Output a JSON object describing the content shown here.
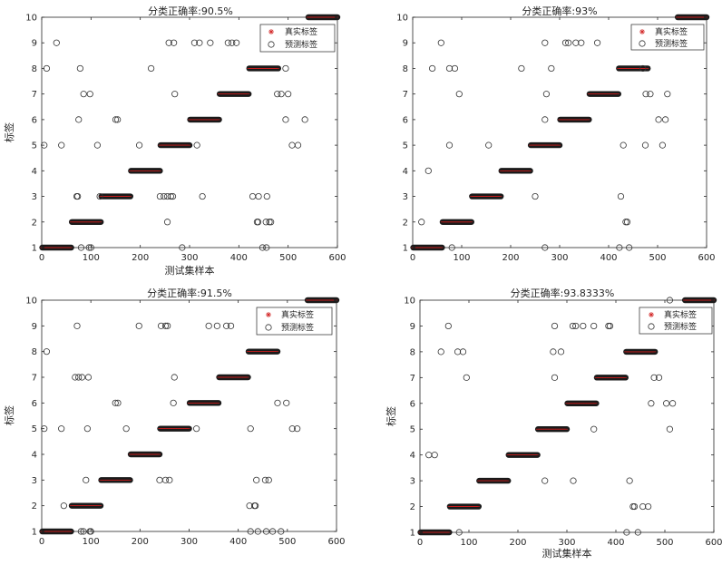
{
  "colors": {
    "true_marker": "#d11f1f",
    "pred_marker": "#333333",
    "axis": "#262626"
  },
  "chart_data": [
    {
      "type": "scatter",
      "title": "分类正确率:90.5%",
      "xlabel": "测试集样本",
      "ylabel": "标签",
      "xlim": [
        0,
        600
      ],
      "ylim": [
        1,
        10
      ],
      "xticks": [
        0,
        100,
        200,
        300,
        400,
        500,
        600
      ],
      "yticks": [
        1,
        2,
        3,
        4,
        5,
        6,
        7,
        8,
        9,
        10
      ],
      "legend": {
        "position": "top-right",
        "entries": [
          "真实标签",
          "预测标签"
        ]
      },
      "true_segments": [
        {
          "label": 1,
          "x_start": 1,
          "x_end": 60
        },
        {
          "label": 2,
          "x_start": 61,
          "x_end": 120
        },
        {
          "label": 3,
          "x_start": 121,
          "x_end": 180
        },
        {
          "label": 4,
          "x_start": 181,
          "x_end": 240
        },
        {
          "label": 5,
          "x_start": 241,
          "x_end": 300
        },
        {
          "label": 6,
          "x_start": 301,
          "x_end": 360
        },
        {
          "label": 7,
          "x_start": 361,
          "x_end": 420
        },
        {
          "label": 8,
          "x_start": 421,
          "x_end": 480
        },
        {
          "label": 9,
          "x_start": 481,
          "x_end": 540
        },
        {
          "label": 10,
          "x_start": 541,
          "x_end": 600
        }
      ],
      "misclassified": [
        {
          "x": 30,
          "y": 9
        },
        {
          "x": 10,
          "y": 8
        },
        {
          "x": 78,
          "y": 8
        },
        {
          "x": 85,
          "y": 7
        },
        {
          "x": 98,
          "y": 7
        },
        {
          "x": 75,
          "y": 6
        },
        {
          "x": 5,
          "y": 5
        },
        {
          "x": 40,
          "y": 5
        },
        {
          "x": 113,
          "y": 5
        },
        {
          "x": 71,
          "y": 3
        },
        {
          "x": 73,
          "y": 3
        },
        {
          "x": 80,
          "y": 1
        },
        {
          "x": 96,
          "y": 1
        },
        {
          "x": 100,
          "y": 1
        },
        {
          "x": 150,
          "y": 6
        },
        {
          "x": 154,
          "y": 6
        },
        {
          "x": 222,
          "y": 8
        },
        {
          "x": 198,
          "y": 5
        },
        {
          "x": 118,
          "y": 3
        },
        {
          "x": 258,
          "y": 9
        },
        {
          "x": 268,
          "y": 9
        },
        {
          "x": 270,
          "y": 7
        },
        {
          "x": 240,
          "y": 3
        },
        {
          "x": 248,
          "y": 3
        },
        {
          "x": 255,
          "y": 3
        },
        {
          "x": 262,
          "y": 3
        },
        {
          "x": 266,
          "y": 3
        },
        {
          "x": 255,
          "y": 2
        },
        {
          "x": 285,
          "y": 1
        },
        {
          "x": 310,
          "y": 9
        },
        {
          "x": 320,
          "y": 9
        },
        {
          "x": 342,
          "y": 9
        },
        {
          "x": 315,
          "y": 5
        },
        {
          "x": 326,
          "y": 3
        },
        {
          "x": 378,
          "y": 9
        },
        {
          "x": 386,
          "y": 9
        },
        {
          "x": 395,
          "y": 9
        },
        {
          "x": 428,
          "y": 3
        },
        {
          "x": 440,
          "y": 3
        },
        {
          "x": 457,
          "y": 3
        },
        {
          "x": 437,
          "y": 2
        },
        {
          "x": 439,
          "y": 2
        },
        {
          "x": 455,
          "y": 2
        },
        {
          "x": 462,
          "y": 2
        },
        {
          "x": 465,
          "y": 2
        },
        {
          "x": 448,
          "y": 1
        },
        {
          "x": 456,
          "y": 1
        },
        {
          "x": 495,
          "y": 8
        },
        {
          "x": 478,
          "y": 7
        },
        {
          "x": 486,
          "y": 7
        },
        {
          "x": 500,
          "y": 7
        },
        {
          "x": 495,
          "y": 6
        },
        {
          "x": 534,
          "y": 6
        },
        {
          "x": 508,
          "y": 5
        },
        {
          "x": 520,
          "y": 5
        }
      ]
    },
    {
      "type": "scatter",
      "title": "分类正确率:93%",
      "xlabel": "",
      "ylabel": "",
      "xlim": [
        0,
        600
      ],
      "ylim": [
        1,
        10
      ],
      "xticks": [
        0,
        100,
        200,
        300,
        400,
        500,
        600
      ],
      "yticks": [
        1,
        2,
        3,
        4,
        5,
        6,
        7,
        8,
        9,
        10
      ],
      "legend": {
        "position": "top-right",
        "entries": [
          "真实标签",
          "预测标签"
        ]
      },
      "true_segments": [
        {
          "label": 1,
          "x_start": 1,
          "x_end": 60
        },
        {
          "label": 2,
          "x_start": 61,
          "x_end": 120
        },
        {
          "label": 3,
          "x_start": 121,
          "x_end": 180
        },
        {
          "label": 4,
          "x_start": 181,
          "x_end": 240
        },
        {
          "label": 5,
          "x_start": 241,
          "x_end": 300
        },
        {
          "label": 6,
          "x_start": 301,
          "x_end": 360
        },
        {
          "label": 7,
          "x_start": 361,
          "x_end": 420
        },
        {
          "label": 8,
          "x_start": 421,
          "x_end": 480
        },
        {
          "label": 9,
          "x_start": 481,
          "x_end": 540
        },
        {
          "label": 10,
          "x_start": 541,
          "x_end": 600
        }
      ],
      "misclassified": [
        {
          "x": 58,
          "y": 9
        },
        {
          "x": 40,
          "y": 8
        },
        {
          "x": 75,
          "y": 8
        },
        {
          "x": 86,
          "y": 8
        },
        {
          "x": 95,
          "y": 7
        },
        {
          "x": 75,
          "y": 5
        },
        {
          "x": 32,
          "y": 4
        },
        {
          "x": 18,
          "y": 2
        },
        {
          "x": 80,
          "y": 1
        },
        {
          "x": 222,
          "y": 8
        },
        {
          "x": 155,
          "y": 5
        },
        {
          "x": 250,
          "y": 3
        },
        {
          "x": 270,
          "y": 9
        },
        {
          "x": 312,
          "y": 9
        },
        {
          "x": 318,
          "y": 9
        },
        {
          "x": 333,
          "y": 9
        },
        {
          "x": 344,
          "y": 9
        },
        {
          "x": 377,
          "y": 9
        },
        {
          "x": 283,
          "y": 8
        },
        {
          "x": 273,
          "y": 7
        },
        {
          "x": 270,
          "y": 6
        },
        {
          "x": 270,
          "y": 1
        },
        {
          "x": 425,
          "y": 3
        },
        {
          "x": 435,
          "y": 2
        },
        {
          "x": 438,
          "y": 2
        },
        {
          "x": 430,
          "y": 5
        },
        {
          "x": 475,
          "y": 5
        },
        {
          "x": 422,
          "y": 1
        },
        {
          "x": 442,
          "y": 1
        },
        {
          "x": 476,
          "y": 7
        },
        {
          "x": 485,
          "y": 7
        },
        {
          "x": 520,
          "y": 7
        },
        {
          "x": 470,
          "y": 8
        },
        {
          "x": 502,
          "y": 6
        },
        {
          "x": 516,
          "y": 6
        },
        {
          "x": 510,
          "y": 5
        }
      ]
    },
    {
      "type": "scatter",
      "title": "分类正确率:91.5%",
      "xlabel": "",
      "ylabel": "标签",
      "xlim": [
        0,
        600
      ],
      "ylim": [
        1,
        10
      ],
      "xticks": [
        0,
        100,
        200,
        300,
        400,
        500,
        600
      ],
      "yticks": [
        1,
        2,
        3,
        4,
        5,
        6,
        7,
        8,
        9,
        10
      ],
      "legend": {
        "position": "top-right",
        "entries": [
          "真实标签",
          "预测标签"
        ]
      },
      "true_segments": [
        {
          "label": 1,
          "x_start": 1,
          "x_end": 60
        },
        {
          "label": 2,
          "x_start": 61,
          "x_end": 120
        },
        {
          "label": 3,
          "x_start": 121,
          "x_end": 180
        },
        {
          "label": 4,
          "x_start": 181,
          "x_end": 240
        },
        {
          "label": 5,
          "x_start": 241,
          "x_end": 300
        },
        {
          "label": 6,
          "x_start": 301,
          "x_end": 360
        },
        {
          "label": 7,
          "x_start": 361,
          "x_end": 420
        },
        {
          "label": 8,
          "x_start": 421,
          "x_end": 480
        },
        {
          "label": 9,
          "x_start": 481,
          "x_end": 540
        },
        {
          "label": 10,
          "x_start": 541,
          "x_end": 600
        }
      ],
      "misclassified": [
        {
          "x": 10,
          "y": 8
        },
        {
          "x": 72,
          "y": 9
        },
        {
          "x": 68,
          "y": 7
        },
        {
          "x": 75,
          "y": 7
        },
        {
          "x": 82,
          "y": 7
        },
        {
          "x": 95,
          "y": 7
        },
        {
          "x": 5,
          "y": 5
        },
        {
          "x": 40,
          "y": 5
        },
        {
          "x": 93,
          "y": 5
        },
        {
          "x": 45,
          "y": 2
        },
        {
          "x": 90,
          "y": 3
        },
        {
          "x": 80,
          "y": 1
        },
        {
          "x": 85,
          "y": 1
        },
        {
          "x": 98,
          "y": 1
        },
        {
          "x": 100,
          "y": 1
        },
        {
          "x": 198,
          "y": 9
        },
        {
          "x": 150,
          "y": 6
        },
        {
          "x": 155,
          "y": 6
        },
        {
          "x": 172,
          "y": 5
        },
        {
          "x": 243,
          "y": 9
        },
        {
          "x": 252,
          "y": 9
        },
        {
          "x": 256,
          "y": 9
        },
        {
          "x": 270,
          "y": 7
        },
        {
          "x": 268,
          "y": 6
        },
        {
          "x": 240,
          "y": 3
        },
        {
          "x": 252,
          "y": 3
        },
        {
          "x": 260,
          "y": 3
        },
        {
          "x": 340,
          "y": 9
        },
        {
          "x": 357,
          "y": 9
        },
        {
          "x": 376,
          "y": 9
        },
        {
          "x": 385,
          "y": 9
        },
        {
          "x": 315,
          "y": 5
        },
        {
          "x": 425,
          "y": 5
        },
        {
          "x": 437,
          "y": 3
        },
        {
          "x": 455,
          "y": 3
        },
        {
          "x": 462,
          "y": 3
        },
        {
          "x": 423,
          "y": 2
        },
        {
          "x": 433,
          "y": 2
        },
        {
          "x": 435,
          "y": 2
        },
        {
          "x": 425,
          "y": 1
        },
        {
          "x": 440,
          "y": 1
        },
        {
          "x": 457,
          "y": 1
        },
        {
          "x": 470,
          "y": 1
        },
        {
          "x": 487,
          "y": 1
        },
        {
          "x": 480,
          "y": 6
        },
        {
          "x": 498,
          "y": 6
        },
        {
          "x": 510,
          "y": 5
        },
        {
          "x": 520,
          "y": 5
        }
      ]
    },
    {
      "type": "scatter",
      "title": "分类正确率:93.8333%",
      "xlabel": "测试集样本",
      "ylabel": "标签",
      "xlim": [
        0,
        600
      ],
      "ylim": [
        1,
        10
      ],
      "xticks": [
        0,
        100,
        200,
        300,
        400,
        500,
        600
      ],
      "yticks": [
        1,
        2,
        3,
        4,
        5,
        6,
        7,
        8,
        9,
        10
      ],
      "legend": {
        "position": "top-right",
        "entries": [
          "真实标签",
          "预测标签"
        ]
      },
      "true_segments": [
        {
          "label": 1,
          "x_start": 1,
          "x_end": 60
        },
        {
          "label": 2,
          "x_start": 61,
          "x_end": 120
        },
        {
          "label": 3,
          "x_start": 121,
          "x_end": 180
        },
        {
          "label": 4,
          "x_start": 181,
          "x_end": 240
        },
        {
          "label": 5,
          "x_start": 241,
          "x_end": 300
        },
        {
          "label": 6,
          "x_start": 301,
          "x_end": 360
        },
        {
          "label": 7,
          "x_start": 361,
          "x_end": 420
        },
        {
          "label": 8,
          "x_start": 421,
          "x_end": 480
        },
        {
          "label": 9,
          "x_start": 481,
          "x_end": 540
        },
        {
          "label": 10,
          "x_start": 541,
          "x_end": 600
        }
      ],
      "misclassified": [
        {
          "x": 58,
          "y": 9
        },
        {
          "x": 43,
          "y": 8
        },
        {
          "x": 77,
          "y": 8
        },
        {
          "x": 88,
          "y": 8
        },
        {
          "x": 95,
          "y": 7
        },
        {
          "x": 18,
          "y": 4
        },
        {
          "x": 30,
          "y": 4
        },
        {
          "x": 80,
          "y": 1
        },
        {
          "x": 275,
          "y": 9
        },
        {
          "x": 312,
          "y": 9
        },
        {
          "x": 318,
          "y": 9
        },
        {
          "x": 333,
          "y": 9
        },
        {
          "x": 355,
          "y": 9
        },
        {
          "x": 385,
          "y": 9
        },
        {
          "x": 388,
          "y": 9
        },
        {
          "x": 272,
          "y": 8
        },
        {
          "x": 288,
          "y": 8
        },
        {
          "x": 275,
          "y": 7
        },
        {
          "x": 255,
          "y": 3
        },
        {
          "x": 313,
          "y": 3
        },
        {
          "x": 355,
          "y": 5
        },
        {
          "x": 428,
          "y": 3
        },
        {
          "x": 435,
          "y": 2
        },
        {
          "x": 438,
          "y": 2
        },
        {
          "x": 455,
          "y": 2
        },
        {
          "x": 466,
          "y": 2
        },
        {
          "x": 422,
          "y": 1
        },
        {
          "x": 445,
          "y": 1
        },
        {
          "x": 478,
          "y": 7
        },
        {
          "x": 488,
          "y": 7
        },
        {
          "x": 472,
          "y": 6
        },
        {
          "x": 503,
          "y": 6
        },
        {
          "x": 516,
          "y": 6
        },
        {
          "x": 510,
          "y": 5
        },
        {
          "x": 510,
          "y": 10
        }
      ]
    }
  ]
}
